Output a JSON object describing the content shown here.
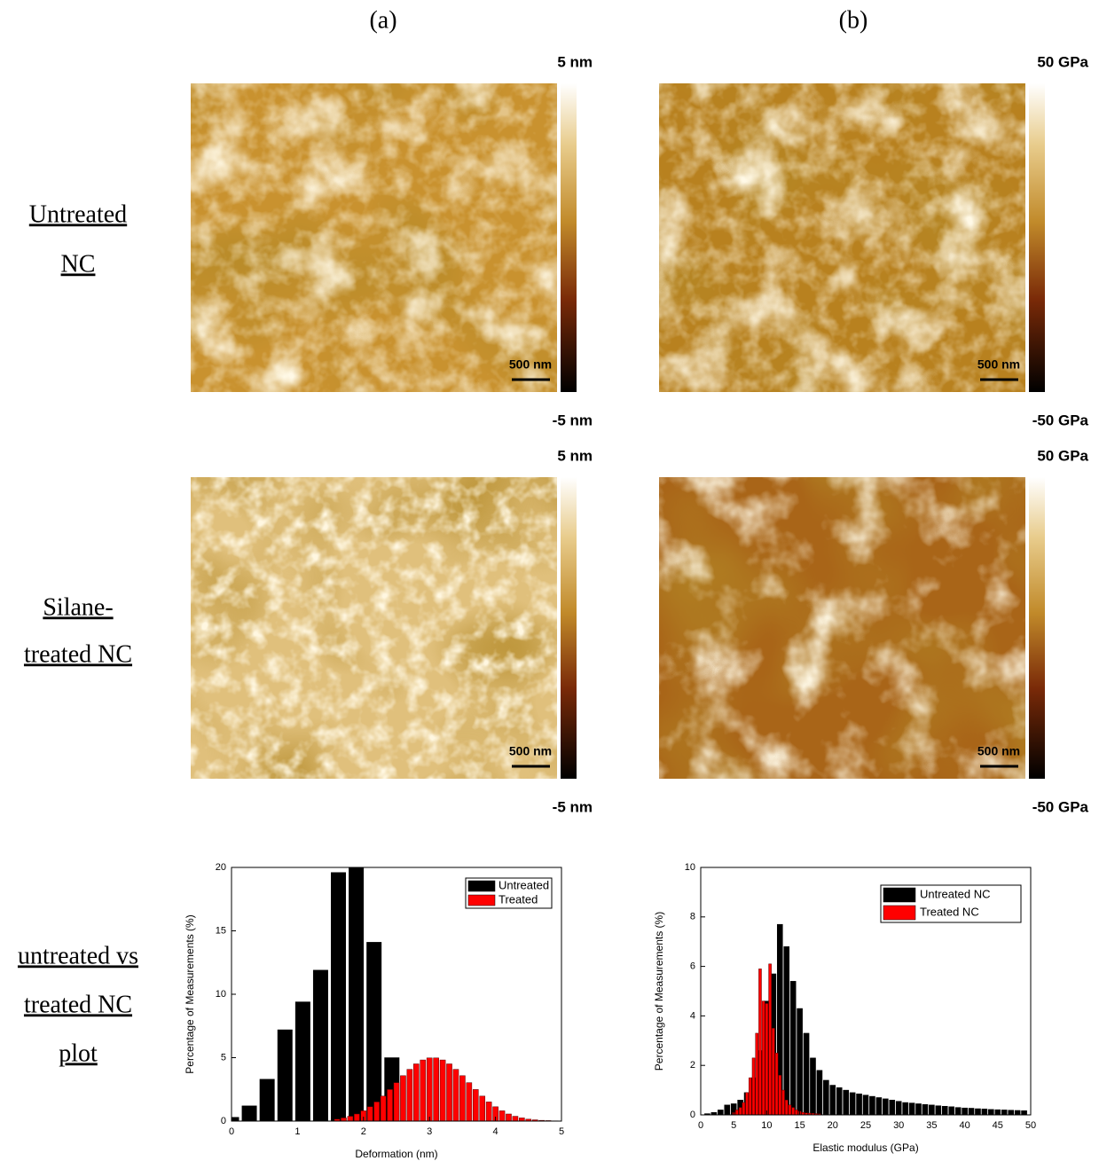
{
  "panel_labels": [
    "(a)",
    "(b)"
  ],
  "row_labels": [
    [
      "Untreated",
      "NC"
    ],
    [
      "Silane-",
      "treated NC"
    ],
    [
      "untreated vs",
      "treated NC",
      "plot"
    ]
  ],
  "images": [
    {
      "colorbar_max": "5 nm",
      "colorbar_min": "-5 nm",
      "scale_bar": "500 nm"
    },
    {
      "colorbar_max": "50 GPa",
      "colorbar_min": "-50 GPa",
      "scale_bar": "500 nm"
    },
    {
      "colorbar_max": "5 nm",
      "colorbar_min": "-5 nm",
      "scale_bar": "500 nm"
    },
    {
      "colorbar_max": "50 GPa",
      "colorbar_min": "-50 GPa",
      "scale_bar": "500 nm"
    }
  ],
  "chart_data": [
    {
      "type": "bar",
      "x_label": "Deformation (nm)",
      "y_label": "Percentage of Measurements (%)",
      "xlim": [
        0,
        5
      ],
      "xticks": [
        0,
        1,
        2,
        3,
        4,
        5
      ],
      "ylim": [
        0,
        20
      ],
      "yticks": [
        0,
        5,
        10,
        15,
        20
      ],
      "legend": "top-right",
      "series": [
        {
          "name": "Untreated",
          "color": "#000000",
          "x": [
            0.0,
            0.27,
            0.54,
            0.81,
            1.08,
            1.35,
            1.62,
            1.89,
            2.16,
            2.43
          ],
          "values": [
            0.3,
            1.2,
            3.3,
            7.2,
            9.4,
            11.9,
            19.6,
            20,
            14.1,
            5.0
          ]
        },
        {
          "name": "Treated",
          "color": "#ff0000",
          "x": [
            1.6,
            1.7,
            1.8,
            1.9,
            2.0,
            2.1,
            2.2,
            2.3,
            2.4,
            2.5,
            2.6,
            2.7,
            2.8,
            2.9,
            3.0,
            3.1,
            3.2,
            3.3,
            3.4,
            3.5,
            3.6,
            3.7,
            3.8,
            3.9,
            4.0,
            4.1,
            4.2,
            4.3,
            4.4,
            4.5,
            4.6,
            4.7,
            4.8,
            4.9,
            5.0
          ],
          "values": [
            0.15,
            0.25,
            0.38,
            0.56,
            0.81,
            1.13,
            1.51,
            1.97,
            2.49,
            3.03,
            3.58,
            4.08,
            4.51,
            4.82,
            4.98,
            4.98,
            4.82,
            4.51,
            4.08,
            3.58,
            3.03,
            2.49,
            1.97,
            1.51,
            1.13,
            0.81,
            0.56,
            0.38,
            0.25,
            0.15,
            0.1,
            0.06,
            0.04,
            0.02,
            0.01
          ]
        }
      ]
    },
    {
      "type": "bar",
      "x_label": "Elastic modulus (GPa)",
      "y_label": "Percentage of Measurements (%)",
      "xlim": [
        0,
        50
      ],
      "xticks": [
        0,
        5,
        10,
        15,
        20,
        25,
        30,
        35,
        40,
        45,
        50
      ],
      "ylim": [
        0,
        10
      ],
      "yticks": [
        0,
        2,
        4,
        6,
        8,
        10
      ],
      "legend": "top-right",
      "series": [
        {
          "name": "Untreated NC",
          "color": "#000000",
          "x": [
            1,
            2,
            3,
            4,
            5,
            6,
            7,
            8,
            9,
            10,
            11,
            12,
            13,
            14,
            15,
            16,
            17,
            18,
            19,
            20,
            21,
            22,
            23,
            24,
            25,
            26,
            27,
            28,
            29,
            30,
            31,
            32,
            33,
            34,
            35,
            36,
            37,
            38,
            39,
            40,
            41,
            42,
            43,
            44,
            45,
            46,
            47,
            48,
            49
          ],
          "values": [
            0.05,
            0.1,
            0.2,
            0.4,
            0.45,
            0.6,
            0.9,
            1.5,
            2.6,
            4.6,
            5.7,
            7.7,
            6.8,
            5.4,
            4.3,
            3.3,
            2.3,
            1.8,
            1.4,
            1.2,
            1.1,
            1.0,
            0.9,
            0.85,
            0.8,
            0.75,
            0.7,
            0.65,
            0.6,
            0.55,
            0.5,
            0.48,
            0.45,
            0.42,
            0.4,
            0.37,
            0.35,
            0.33,
            0.3,
            0.28,
            0.27,
            0.25,
            0.24,
            0.22,
            0.21,
            0.2,
            0.19,
            0.18,
            0.17
          ]
        },
        {
          "name": "Treated NC",
          "color": "#ff0000",
          "x": [
            5,
            5.5,
            6,
            6.5,
            7,
            7.5,
            8,
            8.5,
            9,
            9.5,
            10,
            10.5,
            11,
            11.5,
            12,
            12.5,
            13,
            13.5,
            14,
            14.5,
            15,
            15.5,
            16,
            16.5,
            17,
            17.5,
            18
          ],
          "values": [
            0.1,
            0.2,
            0.3,
            0.5,
            0.9,
            1.5,
            2.3,
            3.3,
            5.9,
            4.6,
            4.5,
            6.1,
            3.5,
            2.5,
            1.6,
            1.0,
            0.6,
            0.4,
            0.3,
            0.2,
            0.15,
            0.1,
            0.08,
            0.07,
            0.06,
            0.05,
            0.04
          ]
        }
      ]
    }
  ]
}
